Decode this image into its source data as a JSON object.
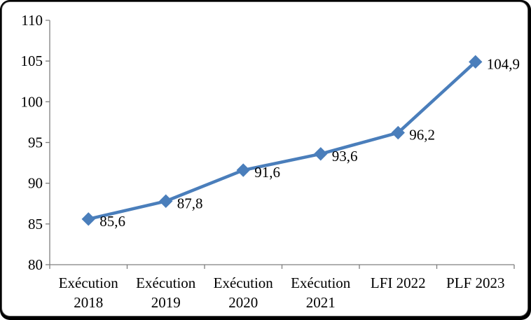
{
  "window": {
    "background": "#000000",
    "card_background": "#ffffff",
    "frame_border_color": "#555555"
  },
  "chart_data": {
    "type": "line",
    "title": "",
    "xlabel": "",
    "ylabel": "",
    "categories": [
      [
        "Exécution",
        "2018"
      ],
      [
        "Exécution",
        "2019"
      ],
      [
        "Exécution",
        "2020"
      ],
      [
        "Exécution",
        "2021"
      ],
      [
        "LFI 2022"
      ],
      [
        "PLF 2023"
      ]
    ],
    "series": [
      {
        "name": "",
        "values": [
          85.6,
          87.8,
          91.6,
          93.6,
          96.2,
          104.9
        ],
        "point_labels": [
          "85,6",
          "87,8",
          "91,6",
          "93,6",
          "96,2",
          "104,9"
        ]
      }
    ],
    "y_ticks": [
      80,
      85,
      90,
      95,
      100,
      105,
      110
    ],
    "y_tick_labels": [
      "80",
      "85",
      "90",
      "95",
      "100",
      "105",
      "110"
    ],
    "ylim": [
      80,
      110
    ],
    "grid": false,
    "legend_position": "none",
    "marker_shape": "diamond",
    "series_color": "#4a7ebb",
    "marker_color": "#4a7ebb",
    "axis_color": "#7f7f7f",
    "text_color": "#000000",
    "decimal_separator": ","
  }
}
